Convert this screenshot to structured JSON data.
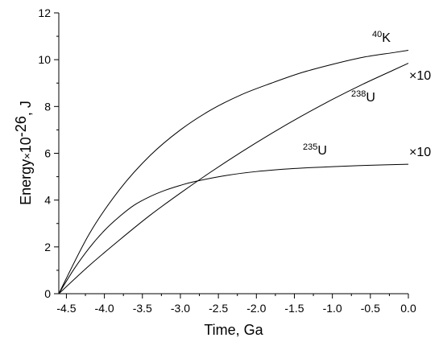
{
  "chart_data": {
    "type": "line",
    "xlabel": "Time, Ga",
    "ylabel": "Energy×10^-26, J",
    "ylabel_parts": {
      "base": "Energy",
      "times": "×",
      "ten": "10",
      "exp": "-26",
      "unit": ", J"
    },
    "xlim": [
      -4.6,
      0.0
    ],
    "ylim": [
      0,
      12
    ],
    "x_ticks": [
      -4.5,
      -4.0,
      -3.5,
      -3.0,
      -2.5,
      -2.0,
      -1.5,
      -1.0,
      -0.5,
      0.0
    ],
    "x_tick_labels": [
      "-4.5",
      "-4.0",
      "-3.5",
      "-3.0",
      "-2.5",
      "-2.0",
      "-1.5",
      "-1.0",
      "-0.5",
      "0.0"
    ],
    "y_ticks": [
      0,
      2,
      4,
      6,
      8,
      10,
      12
    ],
    "y_tick_labels": [
      "0",
      "2",
      "4",
      "6",
      "8",
      "10",
      "12"
    ],
    "grid": false,
    "series": [
      {
        "label_sup": "40",
        "label_base": "K",
        "multiplier": "",
        "x": [
          -4.6,
          -4.2,
          -3.8,
          -3.4,
          -3.0,
          -2.6,
          -2.2,
          -1.8,
          -1.4,
          -1.0,
          -0.6,
          -0.2,
          0.0
        ],
        "y": [
          0.0,
          2.55,
          4.45,
          5.9,
          7.0,
          7.85,
          8.5,
          9.0,
          9.45,
          9.8,
          10.1,
          10.3,
          10.4
        ]
      },
      {
        "label_sup": "238",
        "label_base": "U",
        "multiplier": "×10",
        "x": [
          -4.6,
          -4.2,
          -3.8,
          -3.4,
          -3.0,
          -2.6,
          -2.2,
          -1.8,
          -1.4,
          -1.0,
          -0.6,
          -0.2,
          0.0
        ],
        "y": [
          0.0,
          1.2,
          2.3,
          3.35,
          4.3,
          5.2,
          6.05,
          6.85,
          7.6,
          8.3,
          8.95,
          9.55,
          9.85
        ]
      },
      {
        "label_sup": "235",
        "label_base": "U",
        "multiplier": "×10",
        "x": [
          -4.6,
          -4.4,
          -4.2,
          -4.0,
          -3.8,
          -3.6,
          -3.4,
          -3.2,
          -3.0,
          -2.8,
          -2.4,
          -2.0,
          -1.5,
          -1.0,
          -0.5,
          0.0
        ],
        "y": [
          0.0,
          1.05,
          1.95,
          2.7,
          3.3,
          3.8,
          4.15,
          4.42,
          4.63,
          4.8,
          5.05,
          5.22,
          5.35,
          5.43,
          5.49,
          5.53
        ]
      }
    ]
  }
}
